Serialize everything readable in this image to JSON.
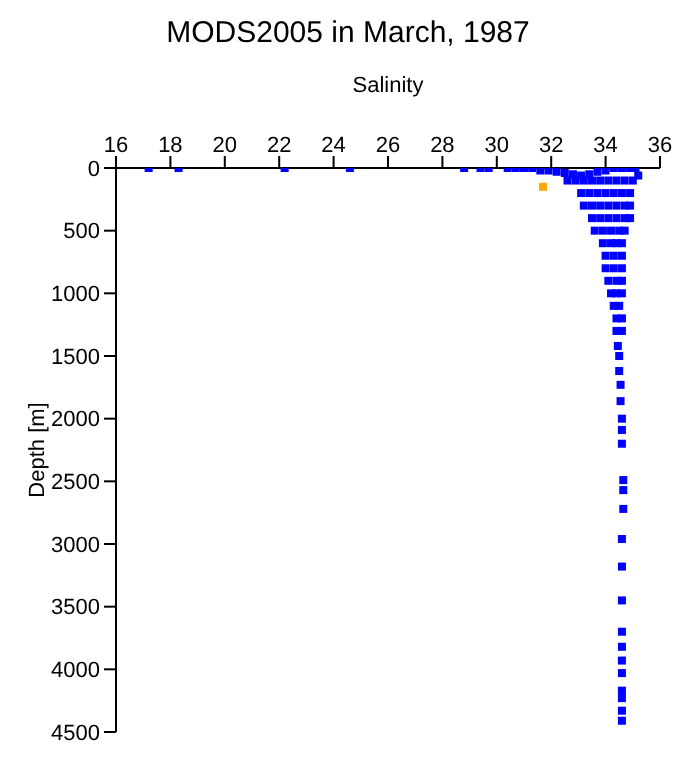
{
  "chart_data": {
    "type": "scatter",
    "title": "MODS2005 in March, 1987",
    "xlabel": "Salinity",
    "ylabel": "Depth [m]",
    "xlim": [
      16,
      36
    ],
    "xticks": [
      16,
      18,
      20,
      22,
      24,
      26,
      28,
      30,
      32,
      34,
      36
    ],
    "ylim": [
      4500,
      0
    ],
    "yticks": [
      0,
      500,
      1000,
      1500,
      2000,
      2500,
      3000,
      3500,
      4000,
      4500
    ],
    "grid": false,
    "marker": "square",
    "series": [
      {
        "color": "#0000ff",
        "x": [
          17.2,
          18.3,
          22.2,
          24.6,
          28.8,
          29.4,
          29.7,
          30.4,
          30.7,
          31.0,
          31.3,
          31.6,
          31.9,
          32.2,
          32.5,
          32.8,
          33.1,
          33.4,
          33.7,
          34.0,
          34.3,
          34.6,
          34.9,
          35.1,
          35.2,
          32.6,
          32.9,
          33.2,
          33.5,
          33.8,
          34.1,
          34.4,
          34.7,
          35.0,
          33.1,
          33.4,
          33.7,
          34.0,
          34.3,
          34.6,
          34.9,
          33.2,
          33.5,
          33.8,
          34.1,
          34.4,
          34.7,
          34.9,
          33.5,
          33.8,
          34.1,
          34.4,
          34.7,
          34.9,
          33.6,
          33.9,
          34.2,
          34.5,
          34.7,
          33.9,
          34.2,
          34.4,
          34.6,
          34.0,
          34.3,
          34.6,
          34.0,
          34.3,
          34.6,
          34.1,
          34.4,
          34.6,
          34.2,
          34.4,
          34.6,
          34.3,
          34.5,
          34.4,
          34.6,
          34.4,
          34.6,
          34.45,
          34.5,
          34.5,
          34.55,
          34.55,
          34.6,
          34.6,
          34.6,
          34.65,
          34.65,
          34.65,
          34.6,
          34.6,
          34.6,
          34.6,
          34.6,
          34.6,
          34.6,
          34.6,
          34.6,
          34.6,
          34.6
        ],
        "values": [
          0,
          0,
          0,
          0,
          0,
          0,
          0,
          0,
          0,
          0,
          0,
          20,
          20,
          30,
          40,
          50,
          60,
          50,
          30,
          20,
          0,
          0,
          0,
          0,
          60,
          100,
          100,
          100,
          100,
          100,
          100,
          100,
          100,
          100,
          200,
          200,
          200,
          200,
          200,
          200,
          200,
          300,
          300,
          300,
          300,
          300,
          300,
          300,
          400,
          400,
          400,
          400,
          400,
          400,
          500,
          500,
          500,
          500,
          500,
          600,
          600,
          600,
          600,
          700,
          700,
          700,
          800,
          800,
          800,
          900,
          900,
          900,
          1000,
          1000,
          1000,
          1100,
          1100,
          1200,
          1200,
          1300,
          1300,
          1420,
          1500,
          1620,
          1730,
          1860,
          2000,
          2090,
          2200,
          2490,
          2570,
          2720,
          2960,
          3180,
          3450,
          3700,
          3820,
          3930,
          4030,
          4170,
          4230,
          4330,
          4410
        ]
      },
      {
        "color": "#ffa500",
        "x": [
          31.7
        ],
        "values": [
          150
        ]
      }
    ]
  }
}
